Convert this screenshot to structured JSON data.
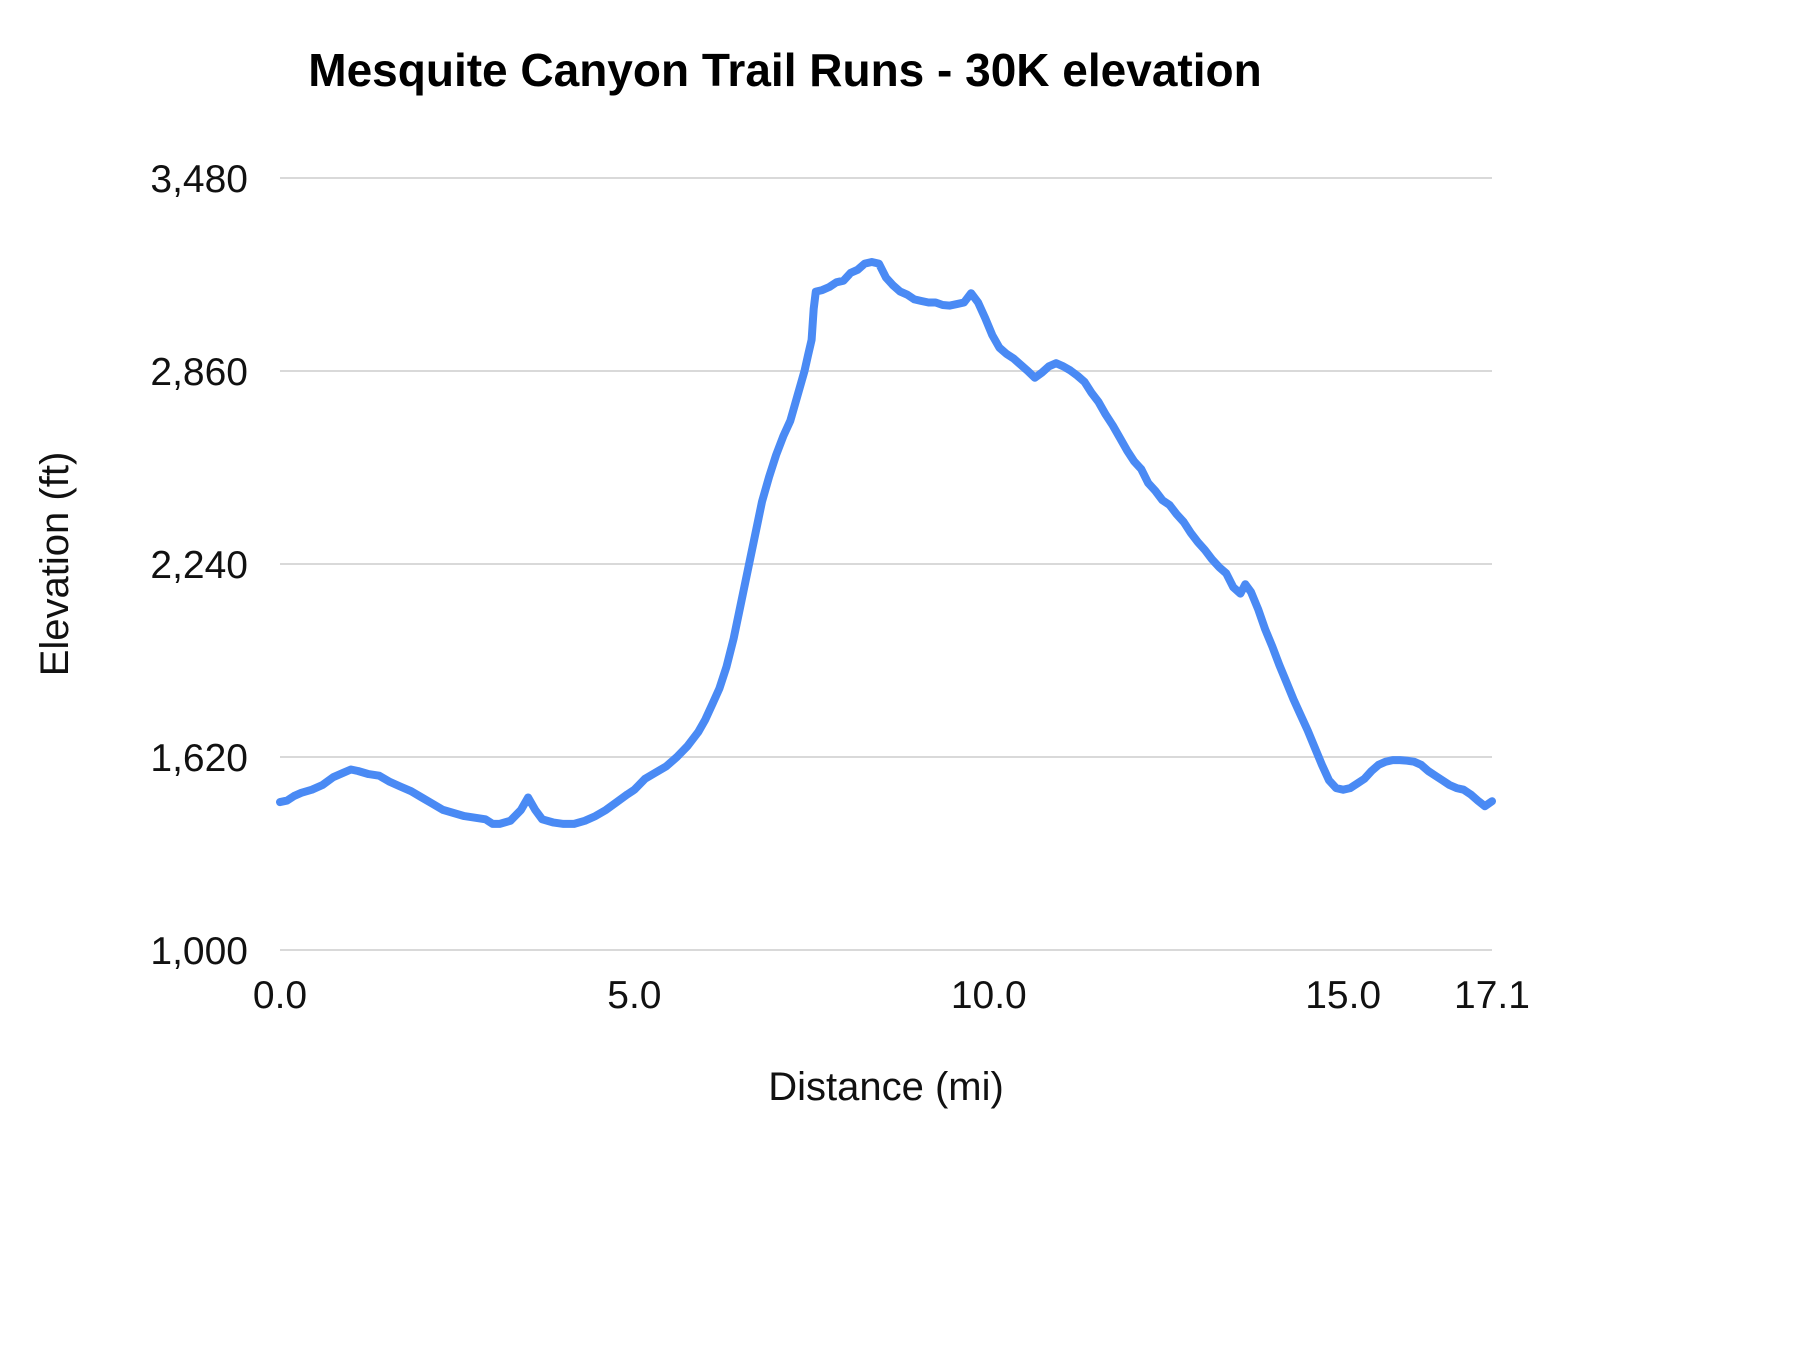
{
  "colors": {
    "line": "#4a8af4",
    "grid": "#d9d9d9",
    "text": "#111111"
  },
  "chart_data": {
    "type": "line",
    "title": "Mesquite Canyon Trail Runs - 30K elevation",
    "xlabel": "Distance (mi)",
    "ylabel": "Elevation (ft)",
    "xlim": [
      0,
      17.1
    ],
    "ylim": [
      1000,
      3480
    ],
    "grid": "horizontal",
    "legend": "none",
    "x_ticks": [
      {
        "value": 0.0,
        "label": "0.0"
      },
      {
        "value": 5.0,
        "label": "5.0"
      },
      {
        "value": 10.0,
        "label": "10.0"
      },
      {
        "value": 15.0,
        "label": "15.0"
      },
      {
        "value": 17.1,
        "label": "17.1"
      }
    ],
    "y_ticks": [
      {
        "value": 1000,
        "label": "1,000"
      },
      {
        "value": 1620,
        "label": "1,620"
      },
      {
        "value": 2240,
        "label": "2,240"
      },
      {
        "value": 2860,
        "label": "2,860"
      },
      {
        "value": 3480,
        "label": "3,480"
      }
    ],
    "series": [
      {
        "name": "30K elevation profile",
        "points": [
          [
            0.0,
            1475
          ],
          [
            0.1,
            1480
          ],
          [
            0.2,
            1495
          ],
          [
            0.3,
            1505
          ],
          [
            0.45,
            1515
          ],
          [
            0.6,
            1530
          ],
          [
            0.75,
            1555
          ],
          [
            0.9,
            1570
          ],
          [
            1.0,
            1580
          ],
          [
            1.1,
            1575
          ],
          [
            1.25,
            1565
          ],
          [
            1.4,
            1560
          ],
          [
            1.55,
            1540
          ],
          [
            1.7,
            1525
          ],
          [
            1.85,
            1510
          ],
          [
            2.0,
            1490
          ],
          [
            2.15,
            1470
          ],
          [
            2.3,
            1450
          ],
          [
            2.45,
            1440
          ],
          [
            2.6,
            1430
          ],
          [
            2.75,
            1425
          ],
          [
            2.9,
            1420
          ],
          [
            3.0,
            1405
          ],
          [
            3.1,
            1405
          ],
          [
            3.25,
            1415
          ],
          [
            3.4,
            1450
          ],
          [
            3.5,
            1490
          ],
          [
            3.6,
            1450
          ],
          [
            3.7,
            1420
          ],
          [
            3.85,
            1410
          ],
          [
            4.0,
            1405
          ],
          [
            4.15,
            1405
          ],
          [
            4.3,
            1415
          ],
          [
            4.45,
            1430
          ],
          [
            4.6,
            1450
          ],
          [
            4.75,
            1475
          ],
          [
            4.9,
            1500
          ],
          [
            5.0,
            1515
          ],
          [
            5.15,
            1550
          ],
          [
            5.3,
            1570
          ],
          [
            5.45,
            1590
          ],
          [
            5.6,
            1620
          ],
          [
            5.75,
            1655
          ],
          [
            5.9,
            1700
          ],
          [
            6.0,
            1740
          ],
          [
            6.1,
            1790
          ],
          [
            6.2,
            1840
          ],
          [
            6.3,
            1910
          ],
          [
            6.4,
            2000
          ],
          [
            6.5,
            2110
          ],
          [
            6.6,
            2220
          ],
          [
            6.7,
            2330
          ],
          [
            6.8,
            2440
          ],
          [
            6.9,
            2520
          ],
          [
            7.0,
            2590
          ],
          [
            7.1,
            2650
          ],
          [
            7.2,
            2700
          ],
          [
            7.3,
            2780
          ],
          [
            7.4,
            2860
          ],
          [
            7.45,
            2910
          ],
          [
            7.5,
            2960
          ],
          [
            7.53,
            3060
          ],
          [
            7.56,
            3115
          ],
          [
            7.65,
            3120
          ],
          [
            7.75,
            3130
          ],
          [
            7.85,
            3145
          ],
          [
            7.95,
            3150
          ],
          [
            8.05,
            3175
          ],
          [
            8.15,
            3185
          ],
          [
            8.25,
            3205
          ],
          [
            8.35,
            3210
          ],
          [
            8.45,
            3205
          ],
          [
            8.55,
            3160
          ],
          [
            8.65,
            3135
          ],
          [
            8.75,
            3115
          ],
          [
            8.85,
            3105
          ],
          [
            8.95,
            3090
          ],
          [
            9.05,
            3085
          ],
          [
            9.15,
            3080
          ],
          [
            9.25,
            3080
          ],
          [
            9.35,
            3072
          ],
          [
            9.45,
            3070
          ],
          [
            9.55,
            3075
          ],
          [
            9.65,
            3080
          ],
          [
            9.75,
            3110
          ],
          [
            9.85,
            3080
          ],
          [
            9.95,
            3030
          ],
          [
            10.05,
            2975
          ],
          [
            10.15,
            2935
          ],
          [
            10.25,
            2915
          ],
          [
            10.35,
            2900
          ],
          [
            10.45,
            2880
          ],
          [
            10.55,
            2860
          ],
          [
            10.65,
            2838
          ],
          [
            10.75,
            2855
          ],
          [
            10.85,
            2875
          ],
          [
            10.95,
            2885
          ],
          [
            11.05,
            2875
          ],
          [
            11.15,
            2862
          ],
          [
            11.25,
            2845
          ],
          [
            11.35,
            2825
          ],
          [
            11.45,
            2790
          ],
          [
            11.55,
            2760
          ],
          [
            11.65,
            2720
          ],
          [
            11.75,
            2685
          ],
          [
            11.85,
            2645
          ],
          [
            11.95,
            2605
          ],
          [
            12.05,
            2570
          ],
          [
            12.15,
            2545
          ],
          [
            12.25,
            2500
          ],
          [
            12.35,
            2475
          ],
          [
            12.45,
            2445
          ],
          [
            12.55,
            2430
          ],
          [
            12.65,
            2400
          ],
          [
            12.75,
            2375
          ],
          [
            12.85,
            2340
          ],
          [
            12.95,
            2310
          ],
          [
            13.05,
            2285
          ],
          [
            13.15,
            2255
          ],
          [
            13.25,
            2230
          ],
          [
            13.35,
            2210
          ],
          [
            13.45,
            2165
          ],
          [
            13.55,
            2145
          ],
          [
            13.62,
            2175
          ],
          [
            13.7,
            2150
          ],
          [
            13.8,
            2095
          ],
          [
            13.9,
            2030
          ],
          [
            14.0,
            1975
          ],
          [
            14.1,
            1915
          ],
          [
            14.2,
            1860
          ],
          [
            14.3,
            1805
          ],
          [
            14.4,
            1755
          ],
          [
            14.5,
            1705
          ],
          [
            14.6,
            1650
          ],
          [
            14.7,
            1595
          ],
          [
            14.8,
            1545
          ],
          [
            14.9,
            1520
          ],
          [
            15.0,
            1515
          ],
          [
            15.1,
            1520
          ],
          [
            15.2,
            1535
          ],
          [
            15.3,
            1550
          ],
          [
            15.4,
            1575
          ],
          [
            15.5,
            1595
          ],
          [
            15.6,
            1605
          ],
          [
            15.7,
            1610
          ],
          [
            15.8,
            1610
          ],
          [
            15.9,
            1608
          ],
          [
            16.0,
            1605
          ],
          [
            16.1,
            1595
          ],
          [
            16.2,
            1575
          ],
          [
            16.3,
            1560
          ],
          [
            16.4,
            1545
          ],
          [
            16.5,
            1530
          ],
          [
            16.6,
            1520
          ],
          [
            16.7,
            1515
          ],
          [
            16.8,
            1500
          ],
          [
            16.9,
            1480
          ],
          [
            17.0,
            1462
          ],
          [
            17.05,
            1470
          ],
          [
            17.1,
            1478
          ]
        ]
      }
    ]
  }
}
